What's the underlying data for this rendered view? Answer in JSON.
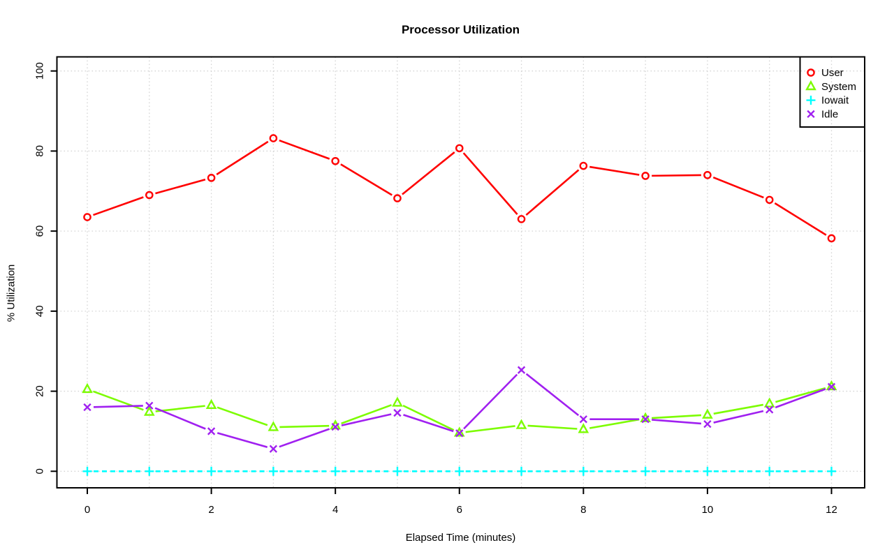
{
  "page": {
    "background": "#ffffff",
    "text_color": "#000000",
    "grid_color": "#d4d4d4",
    "axis_color": "#000000"
  },
  "chart_data": {
    "type": "line",
    "title": "Processor Utilization",
    "xlabel": "Elapsed Time (minutes)",
    "ylabel": "% Utilization",
    "x": [
      0,
      1,
      2,
      3,
      4,
      5,
      6,
      7,
      8,
      9,
      10,
      11,
      12
    ],
    "xticks": [
      0,
      2,
      4,
      6,
      8,
      10,
      12
    ],
    "yticks": [
      0,
      20,
      40,
      60,
      80,
      100
    ],
    "xlim": [
      0,
      12
    ],
    "ylim": [
      0,
      100
    ],
    "grid": true,
    "grid_style": "dotted",
    "legend_position": "topright",
    "series": [
      {
        "name": "User",
        "color": "#ff0000",
        "marker": "circle",
        "linestyle": "solid",
        "values": [
          63.5,
          69.0,
          73.3,
          83.2,
          77.5,
          68.2,
          80.7,
          63.0,
          76.3,
          73.8,
          74.0,
          67.8,
          58.2
        ]
      },
      {
        "name": "System",
        "color": "#7cfc00",
        "marker": "triangle",
        "linestyle": "solid",
        "values": [
          20.5,
          14.8,
          16.5,
          11.0,
          11.4,
          17.1,
          9.6,
          11.5,
          10.5,
          13.2,
          14.1,
          16.9,
          21.2
        ]
      },
      {
        "name": "Iowait",
        "color": "#00ffff",
        "marker": "plus",
        "linestyle": "dashed",
        "values": [
          0,
          0,
          0,
          0,
          0,
          0,
          0,
          0,
          0,
          0,
          0,
          0,
          0
        ]
      },
      {
        "name": "Idle",
        "color": "#a020f0",
        "marker": "x",
        "linestyle": "solid",
        "values": [
          16.0,
          16.4,
          10.0,
          5.6,
          11.1,
          14.6,
          9.5,
          25.3,
          13.0,
          13.0,
          11.8,
          15.4,
          21.1
        ]
      }
    ]
  }
}
